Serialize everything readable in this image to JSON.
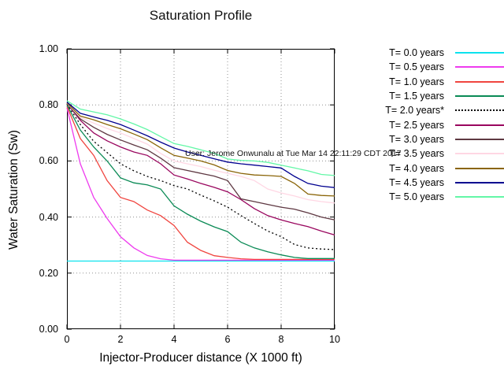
{
  "title": "Saturation Profile",
  "annotation": "User: Jerome Onwunalu at Tue Mar 14 22:11:29 CDT 2017",
  "axes": {
    "x_label": "Injector-Producer distance (X 1000 ft)",
    "y_label": "Water Saturation (Sw)",
    "x_tick_labels": [
      "0",
      "2",
      "4",
      "6",
      "8",
      "10"
    ],
    "x_tick_values": [
      0,
      2,
      4,
      6,
      8,
      10
    ],
    "y_tick_labels": [
      "0.00",
      "0.20",
      "0.40",
      "0.60",
      "0.80",
      "1.00"
    ],
    "y_tick_values": [
      0,
      0.2,
      0.4,
      0.6,
      0.8,
      1.0
    ]
  },
  "colors": {
    "grid": "#909090",
    "border": "#000000",
    "text": "#111111"
  },
  "chart_data": {
    "type": "line",
    "title": "Saturation Profile",
    "xlabel": "Injector-Producer distance (X 1000 ft)",
    "ylabel": "Water Saturation (Sw)",
    "xlim": [
      0,
      10
    ],
    "ylim": [
      0.0,
      1.0
    ],
    "grid": true,
    "legend_position": "right",
    "annotation": "User: Jerome Onwunalu at Tue Mar 14 22:11:29 CDT 2017",
    "x": [
      0,
      0.5,
      1,
      1.5,
      2,
      2.5,
      3,
      3.5,
      4,
      4.5,
      5,
      5.5,
      6,
      6.5,
      7,
      7.5,
      8,
      8.5,
      9,
      9.5,
      10
    ],
    "series": [
      {
        "name": "T= 0.0 years",
        "color": "#0ce2ee",
        "dashed": false,
        "values": [
          0.243,
          0.243,
          0.243,
          0.243,
          0.243,
          0.243,
          0.243,
          0.243,
          0.243,
          0.243,
          0.243,
          0.243,
          0.243,
          0.243,
          0.243,
          0.243,
          0.243,
          0.243,
          0.243,
          0.243,
          0.243
        ]
      },
      {
        "name": "T= 0.5 years",
        "color": "#ee3bee",
        "dashed": false,
        "values": [
          0.79,
          0.59,
          0.47,
          0.395,
          0.33,
          0.29,
          0.263,
          0.251,
          0.246,
          0.246,
          0.246,
          0.246,
          0.246,
          0.246,
          0.246,
          0.246,
          0.246,
          0.246,
          0.246,
          0.246,
          0.246
        ]
      },
      {
        "name": "T= 1.0 years",
        "color": "#f0453f",
        "dashed": false,
        "values": [
          0.795,
          0.68,
          0.62,
          0.53,
          0.47,
          0.455,
          0.425,
          0.405,
          0.37,
          0.31,
          0.281,
          0.262,
          0.256,
          0.251,
          0.249,
          0.249,
          0.249,
          0.249,
          0.249,
          0.249,
          0.249
        ]
      },
      {
        "name": "T= 1.5 years",
        "color": "#0a8a55",
        "dashed": false,
        "values": [
          0.8,
          0.71,
          0.65,
          0.6,
          0.54,
          0.522,
          0.515,
          0.5,
          0.44,
          0.41,
          0.385,
          0.365,
          0.348,
          0.31,
          0.29,
          0.276,
          0.265,
          0.256,
          0.252,
          0.252,
          0.252
        ]
      },
      {
        "name": "T= 2.0 years*",
        "color": "#000000",
        "dashed": true,
        "values": [
          0.803,
          0.73,
          0.67,
          0.63,
          0.59,
          0.565,
          0.545,
          0.53,
          0.512,
          0.5,
          0.478,
          0.458,
          0.435,
          0.405,
          0.377,
          0.35,
          0.33,
          0.302,
          0.29,
          0.286,
          0.284
        ]
      },
      {
        "name": "T= 2.5 years",
        "color": "#99065e",
        "dashed": false,
        "values": [
          0.805,
          0.745,
          0.7,
          0.672,
          0.65,
          0.632,
          0.62,
          0.59,
          0.55,
          0.536,
          0.52,
          0.506,
          0.49,
          0.462,
          0.43,
          0.405,
          0.39,
          0.377,
          0.366,
          0.35,
          0.336
        ]
      },
      {
        "name": "T= 3.0 years",
        "color": "#5e3842",
        "dashed": false,
        "values": [
          0.805,
          0.75,
          0.72,
          0.695,
          0.675,
          0.657,
          0.64,
          0.61,
          0.576,
          0.566,
          0.556,
          0.546,
          0.53,
          0.465,
          0.455,
          0.445,
          0.435,
          0.428,
          0.415,
          0.4,
          0.39
        ]
      },
      {
        "name": "T= 3.5 years",
        "color": "#ffd7e4",
        "dashed": false,
        "values": [
          0.807,
          0.755,
          0.735,
          0.716,
          0.7,
          0.68,
          0.66,
          0.627,
          0.6,
          0.59,
          0.58,
          0.567,
          0.556,
          0.545,
          0.53,
          0.5,
          0.486,
          0.475,
          0.462,
          0.455,
          0.45
        ]
      },
      {
        "name": "T= 4.0 years",
        "color": "#8a6508",
        "dashed": false,
        "values": [
          0.808,
          0.76,
          0.747,
          0.73,
          0.715,
          0.696,
          0.676,
          0.647,
          0.62,
          0.61,
          0.6,
          0.586,
          0.566,
          0.556,
          0.55,
          0.548,
          0.545,
          0.52,
          0.482,
          0.477,
          0.475
        ]
      },
      {
        "name": "T= 4.5 years",
        "color": "#00008f",
        "dashed": false,
        "values": [
          0.81,
          0.77,
          0.757,
          0.745,
          0.73,
          0.71,
          0.69,
          0.667,
          0.646,
          0.632,
          0.62,
          0.608,
          0.596,
          0.59,
          0.585,
          0.58,
          0.575,
          0.545,
          0.52,
          0.51,
          0.505
        ]
      },
      {
        "name": "T= 5.0 years",
        "color": "#63f7a7",
        "dashed": false,
        "values": [
          0.815,
          0.785,
          0.775,
          0.765,
          0.75,
          0.732,
          0.712,
          0.687,
          0.662,
          0.652,
          0.64,
          0.627,
          0.607,
          0.602,
          0.6,
          0.595,
          0.585,
          0.575,
          0.565,
          0.552,
          0.548
        ]
      }
    ]
  }
}
